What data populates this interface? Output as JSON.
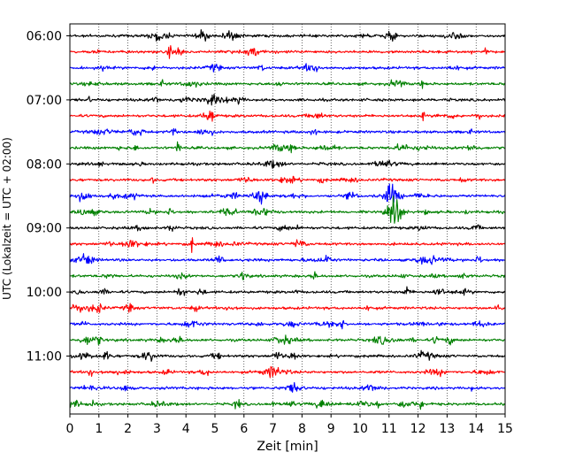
{
  "chart_data": {
    "type": "line",
    "subtype": "helicorder",
    "title": "",
    "xlabel": "Zeit  [min]",
    "ylabel": "UTC (Lokalzeit = UTC + 02:00)",
    "xlim": [
      0,
      15
    ],
    "x_ticks": [
      0,
      1,
      2,
      3,
      4,
      5,
      6,
      7,
      8,
      9,
      10,
      11,
      12,
      13,
      14,
      15
    ],
    "y_tick_labels": [
      "06:00",
      "07:00",
      "08:00",
      "09:00",
      "10:00",
      "11:00"
    ],
    "y_tick_rows": [
      0,
      4,
      8,
      12,
      16,
      20
    ],
    "row_count": 24,
    "row_interval_min": 15,
    "start_time": "06:00",
    "vertical_grid": "dotted",
    "colors": [
      "#000000",
      "#ff0000",
      "#0000ff",
      "#008000"
    ],
    "color_cycle": [
      "black",
      "red",
      "blue",
      "green"
    ],
    "notable_events": [
      {
        "row": 1,
        "minute": 3.45,
        "amplitude": "medium"
      },
      {
        "row": 6,
        "minute": 3.55,
        "amplitude": "medium"
      },
      {
        "row": 5,
        "minute": 4.9,
        "amplitude": "medium"
      },
      {
        "row": 7,
        "minute": 3.75,
        "amplitude": "medium"
      },
      {
        "row": 10,
        "minute": 11.1,
        "amplitude": "large"
      },
      {
        "row": 11,
        "minute": 11.2,
        "amplitude": "large"
      },
      {
        "row": 13,
        "minute": 4.2,
        "amplitude": "medium"
      },
      {
        "row": 14,
        "minute": 14.1,
        "amplitude": "medium"
      },
      {
        "row": 19,
        "minute": 12.6,
        "amplitude": "small"
      },
      {
        "row": 21,
        "minute": 0.7,
        "amplitude": "small"
      },
      {
        "row": 23,
        "minute": 12.1,
        "amplitude": "small"
      }
    ]
  }
}
